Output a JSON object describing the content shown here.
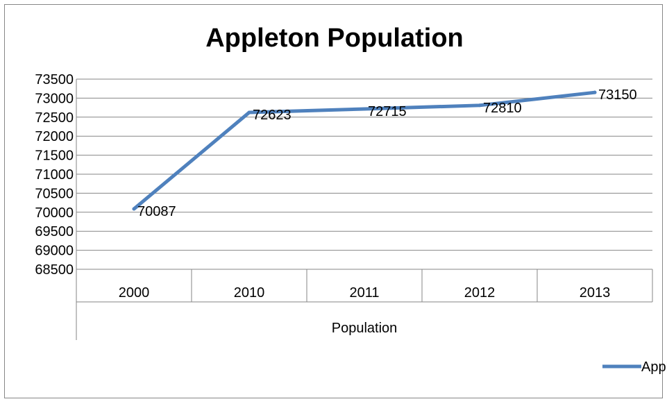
{
  "chart_data": {
    "type": "line",
    "title": "Appleton Population",
    "xlabel": "Population",
    "ylabel": "",
    "categories": [
      "2000",
      "2010",
      "2011",
      "2012",
      "2013"
    ],
    "series": [
      {
        "name": "Appleton Population",
        "values": [
          70087,
          72623,
          72715,
          72810,
          73150
        ]
      }
    ],
    "data_labels": [
      "70087",
      "72623",
      "72715",
      "72810",
      "73150"
    ],
    "y_ticks": [
      "73500",
      "73000",
      "72500",
      "72000",
      "71500",
      "71000",
      "70500",
      "70000",
      "69500",
      "69000",
      "68500"
    ],
    "ylim": [
      68500,
      73500
    ],
    "grid": true,
    "legend": "bottom-right",
    "colors": {
      "series": "#4f81bd",
      "grid": "#868686",
      "frame": "#868686"
    }
  }
}
